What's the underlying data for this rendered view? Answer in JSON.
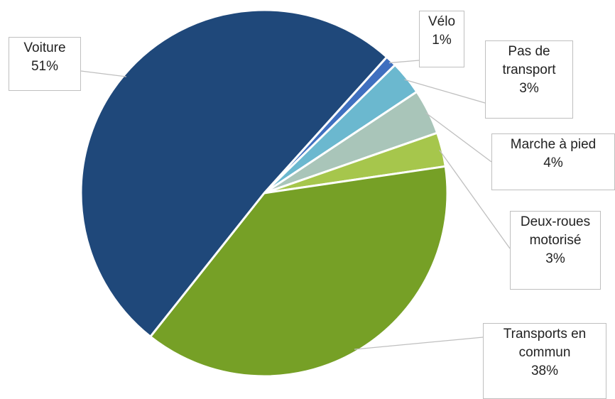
{
  "chart_data": {
    "type": "pie",
    "categories": [
      "Vélo",
      "Pas de transport",
      "Marche à pied",
      "Deux-roues motorisé",
      "Transports en commun",
      "Voiture"
    ],
    "values": [
      1,
      3,
      4,
      3,
      38,
      51
    ],
    "value_labels": [
      "1%",
      "3%",
      "4%",
      "3%",
      "38%",
      "51%"
    ],
    "colors": [
      "#3f6fbf",
      "#6bb8cf",
      "#a9c5b9",
      "#a6c64c",
      "#76a026",
      "#1f487a"
    ]
  }
}
